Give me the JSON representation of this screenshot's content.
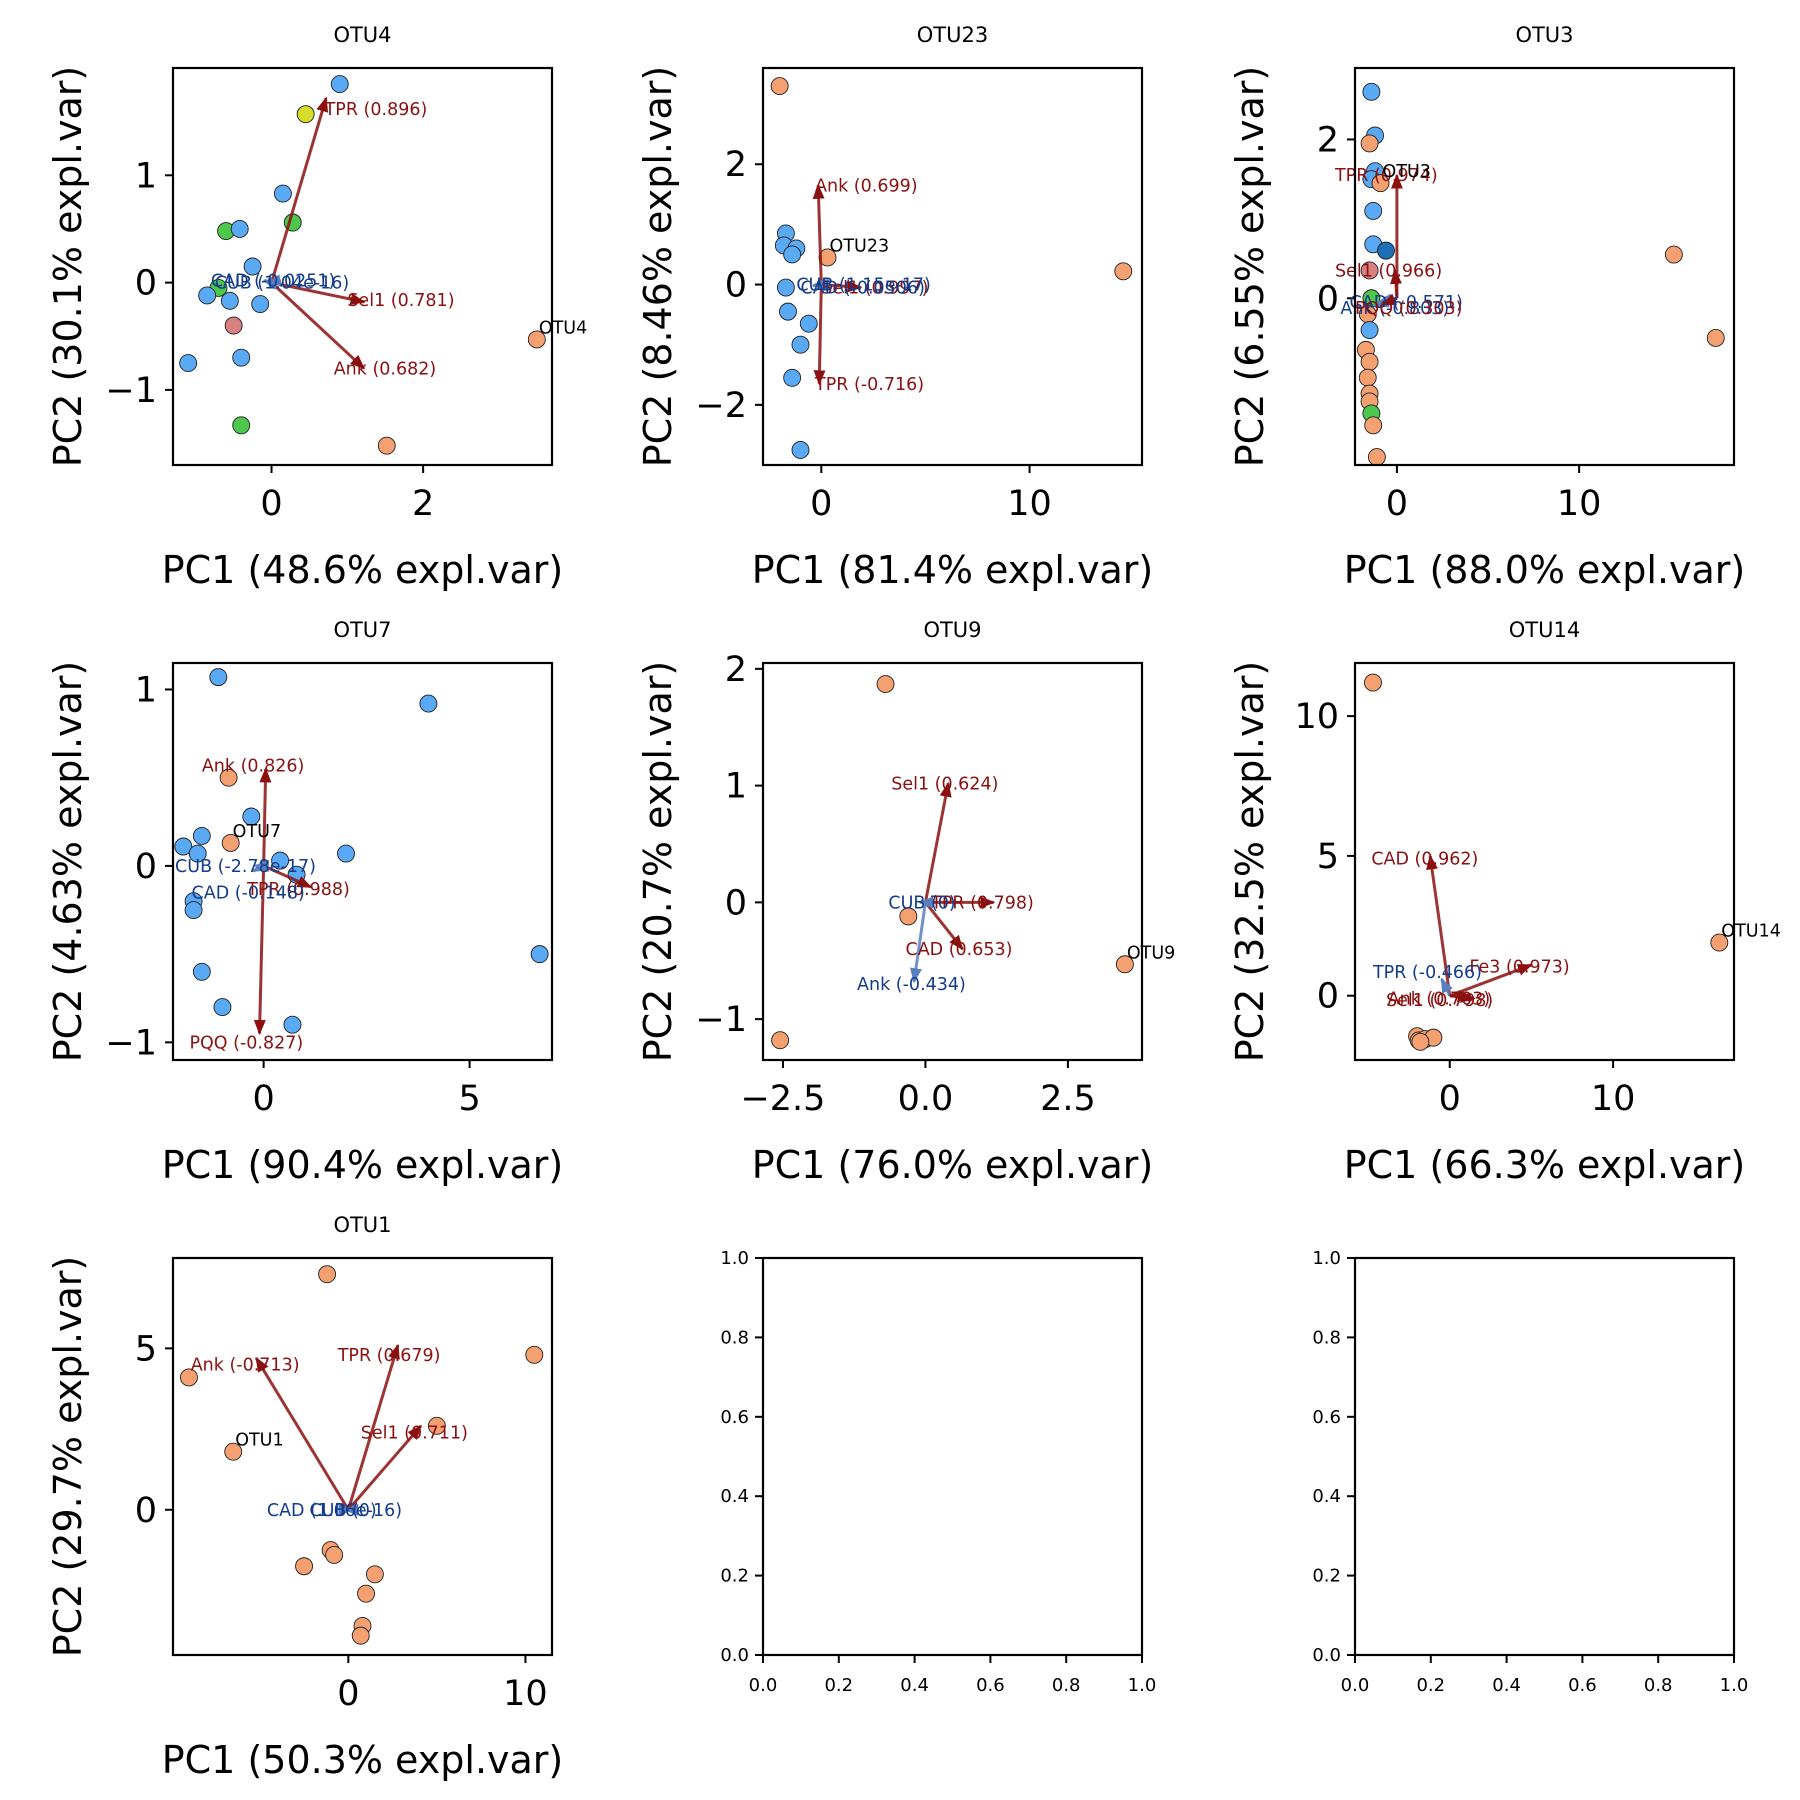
{
  "colors": {
    "blue": "#5aa9f5",
    "orange": "#f5a070",
    "green": "#4cc84c",
    "yellow": "#d6dc2a",
    "pink": "#d98080",
    "darkblue": "#1e6fb5",
    "pos_loading": "#8b1010",
    "neg_loading": "#143c8c",
    "neg_arrow": "#5a7fc0"
  },
  "chart_data": [
    {
      "type": "scatter",
      "title": "OTU4",
      "xlabel": "PC1 (48.6% expl.var)",
      "ylabel": "PC2 (30.1% expl.var)",
      "xlim": [
        -1.3,
        3.7
      ],
      "ylim": [
        -1.7,
        2.0
      ],
      "xticks": [
        0,
        2
      ],
      "xtick_labels": [
        "0",
        "2"
      ],
      "yticks": [
        -1,
        0,
        1
      ],
      "ytick_labels": [
        "−1",
        "0",
        "1"
      ],
      "points": [
        {
          "x": 0.9,
          "y": 1.85,
          "c": "blue"
        },
        {
          "x": 0.45,
          "y": 1.57,
          "c": "yellow"
        },
        {
          "x": 0.15,
          "y": 0.83,
          "c": "blue"
        },
        {
          "x": 0.28,
          "y": 0.56,
          "c": "green"
        },
        {
          "x": -0.6,
          "y": 0.48,
          "c": "green"
        },
        {
          "x": -0.42,
          "y": 0.5,
          "c": "blue"
        },
        {
          "x": -0.25,
          "y": 0.15,
          "c": "blue"
        },
        {
          "x": -0.7,
          "y": -0.05,
          "c": "green"
        },
        {
          "x": -0.85,
          "y": -0.12,
          "c": "blue"
        },
        {
          "x": -0.55,
          "y": -0.17,
          "c": "blue"
        },
        {
          "x": -0.15,
          "y": -0.2,
          "c": "blue"
        },
        {
          "x": -0.5,
          "y": -0.4,
          "c": "pink"
        },
        {
          "x": -1.1,
          "y": -0.75,
          "c": "blue"
        },
        {
          "x": -0.4,
          "y": -0.7,
          "c": "blue"
        },
        {
          "x": -0.4,
          "y": -1.33,
          "c": "green"
        },
        {
          "x": 3.5,
          "y": -0.53,
          "c": "orange",
          "label": "OTU4"
        },
        {
          "x": 1.52,
          "y": -1.52,
          "c": "orange"
        }
      ],
      "loadings": [
        {
          "label": "TPR (0.896)",
          "x": 0.72,
          "y": 1.72,
          "sign": "pos",
          "lx": 0.7,
          "ly": 1.62
        },
        {
          "label": "Sel1 (0.781)",
          "x": 1.22,
          "y": -0.18,
          "sign": "pos",
          "lx": 1.0,
          "ly": -0.16
        },
        {
          "label": "Ank (0.682)",
          "x": 1.22,
          "y": -0.8,
          "sign": "pos",
          "lx": 0.82,
          "ly": -0.8
        },
        {
          "label": "CUB (1.04e-16)",
          "x": -0.1,
          "y": 0.02,
          "sign": "neg",
          "lx": -0.75,
          "ly": 0.0
        },
        {
          "label": "CAD (-0.0251)",
          "x": -0.05,
          "y": -0.01,
          "sign": "neg",
          "lx": -0.8,
          "ly": 0.02
        }
      ]
    },
    {
      "type": "scatter",
      "title": "OTU23",
      "xlabel": "PC1 (81.4% expl.var)",
      "ylabel": "PC2 (8.46% expl.var)",
      "xlim": [
        -2.8,
        15.4
      ],
      "ylim": [
        -3.0,
        3.6
      ],
      "xticks": [
        0,
        10
      ],
      "xtick_labels": [
        "0",
        "10"
      ],
      "yticks": [
        -2,
        0,
        2
      ],
      "ytick_labels": [
        "−2",
        "0",
        "2"
      ],
      "points": [
        {
          "x": -2.0,
          "y": 3.3,
          "c": "orange"
        },
        {
          "x": -1.7,
          "y": 0.85,
          "c": "blue"
        },
        {
          "x": -1.8,
          "y": 0.65,
          "c": "blue"
        },
        {
          "x": -1.2,
          "y": 0.6,
          "c": "blue"
        },
        {
          "x": -1.4,
          "y": 0.5,
          "c": "blue"
        },
        {
          "x": 0.3,
          "y": 0.45,
          "c": "orange",
          "label": "OTU23"
        },
        {
          "x": -1.7,
          "y": -0.05,
          "c": "blue"
        },
        {
          "x": -1.6,
          "y": -0.45,
          "c": "blue"
        },
        {
          "x": -0.6,
          "y": -0.65,
          "c": "blue"
        },
        {
          "x": -1.0,
          "y": -1.0,
          "c": "blue"
        },
        {
          "x": -1.4,
          "y": -1.55,
          "c": "blue"
        },
        {
          "x": -1.0,
          "y": -2.75,
          "c": "blue"
        },
        {
          "x": 14.5,
          "y": 0.22,
          "c": "orange"
        }
      ],
      "loadings": [
        {
          "label": "Ank (0.699)",
          "x": -0.15,
          "y": 1.65,
          "sign": "pos",
          "lx": -0.3,
          "ly": 1.65
        },
        {
          "label": "TPR (-0.716)",
          "x": -0.1,
          "y": -1.65,
          "sign": "pos",
          "lx": -0.3,
          "ly": -1.65
        },
        {
          "label": "Sel1 (0.997)",
          "x": 1.9,
          "y": -0.05,
          "sign": "pos",
          "lx": 0.0,
          "ly": -0.05
        },
        {
          "label": "CUB (1.15e-17)",
          "x": -0.3,
          "y": 0.0,
          "sign": "neg",
          "lx": -1.2,
          "ly": 0.0
        },
        {
          "label": "CAD (-0.0506)",
          "x": -0.4,
          "y": -0.02,
          "sign": "neg",
          "lx": -1.0,
          "ly": -0.05
        }
      ]
    },
    {
      "type": "scatter",
      "title": "OTU3",
      "xlabel": "PC1 (88.0% expl.var)",
      "ylabel": "PC2 (6.55% expl.var)",
      "xlim": [
        -2.3,
        18.5
      ],
      "ylim": [
        -2.1,
        2.9
      ],
      "xticks": [
        0,
        10
      ],
      "xtick_labels": [
        "0",
        "10"
      ],
      "yticks": [
        0,
        2
      ],
      "ytick_labels": [
        "0",
        "2"
      ],
      "points": [
        {
          "x": -1.4,
          "y": 2.6,
          "c": "blue"
        },
        {
          "x": -1.2,
          "y": 2.05,
          "c": "blue"
        },
        {
          "x": -1.5,
          "y": 1.95,
          "c": "orange"
        },
        {
          "x": -1.2,
          "y": 1.6,
          "c": "blue"
        },
        {
          "x": -1.4,
          "y": 1.5,
          "c": "blue"
        },
        {
          "x": -0.9,
          "y": 1.45,
          "c": "orange",
          "label": "OTU3"
        },
        {
          "x": -1.3,
          "y": 1.1,
          "c": "blue"
        },
        {
          "x": -1.3,
          "y": 0.68,
          "c": "blue"
        },
        {
          "x": -0.6,
          "y": 0.6,
          "c": "darkblue"
        },
        {
          "x": -1.5,
          "y": 0.35,
          "c": "pink"
        },
        {
          "x": -1.4,
          "y": 0.0,
          "c": "green"
        },
        {
          "x": -1.6,
          "y": -0.2,
          "c": "orange"
        },
        {
          "x": -1.5,
          "y": -0.4,
          "c": "blue"
        },
        {
          "x": -1.7,
          "y": -0.65,
          "c": "orange"
        },
        {
          "x": -1.5,
          "y": -0.8,
          "c": "orange"
        },
        {
          "x": -1.6,
          "y": -1.0,
          "c": "orange"
        },
        {
          "x": -1.5,
          "y": -1.2,
          "c": "orange"
        },
        {
          "x": -1.5,
          "y": -1.3,
          "c": "orange"
        },
        {
          "x": -1.4,
          "y": -1.45,
          "c": "green"
        },
        {
          "x": -1.3,
          "y": -1.6,
          "c": "orange"
        },
        {
          "x": -1.1,
          "y": -2.0,
          "c": "orange"
        },
        {
          "x": 15.2,
          "y": 0.55,
          "c": "orange"
        },
        {
          "x": 17.5,
          "y": -0.5,
          "c": "orange"
        }
      ],
      "loadings": [
        {
          "label": "TPR (0.974)",
          "x": 0.0,
          "y": 1.55,
          "sign": "pos",
          "lx": -3.4,
          "ly": 1.55
        },
        {
          "label": "Sel1 (0.966)",
          "x": -0.1,
          "y": 0.35,
          "sign": "pos",
          "lx": -3.4,
          "ly": 0.35
        },
        {
          "label": "CAD (-0.571)",
          "x": -1.0,
          "y": -0.05,
          "sign": "neg",
          "lx": -2.6,
          "ly": -0.05
        },
        {
          "label": "Ank (-0.803)",
          "x": -1.2,
          "y": -0.1,
          "sign": "neg",
          "lx": -3.1,
          "ly": -0.12
        },
        {
          "label": "PQQ (0.303)",
          "x": -0.8,
          "y": -0.08,
          "sign": "pos",
          "lx": -2.3,
          "ly": -0.12
        }
      ]
    },
    {
      "type": "scatter",
      "title": "OTU7",
      "xlabel": "PC1 (90.4% expl.var)",
      "ylabel": "PC2 (4.63% expl.var)",
      "xlim": [
        -2.2,
        7.0
      ],
      "ylim": [
        -1.1,
        1.15
      ],
      "xticks": [
        0,
        5
      ],
      "xtick_labels": [
        "0",
        "5"
      ],
      "yticks": [
        -1,
        0,
        1
      ],
      "ytick_labels": [
        "−1",
        "0",
        "1"
      ],
      "points": [
        {
          "x": -1.1,
          "y": 1.07,
          "c": "blue"
        },
        {
          "x": 4.0,
          "y": 0.92,
          "c": "blue"
        },
        {
          "x": -0.85,
          "y": 0.5,
          "c": "orange"
        },
        {
          "x": -0.3,
          "y": 0.28,
          "c": "blue"
        },
        {
          "x": -1.5,
          "y": 0.17,
          "c": "blue"
        },
        {
          "x": -0.8,
          "y": 0.13,
          "c": "orange",
          "label": "OTU7"
        },
        {
          "x": -1.95,
          "y": 0.11,
          "c": "blue"
        },
        {
          "x": -1.6,
          "y": 0.07,
          "c": "blue"
        },
        {
          "x": 2.0,
          "y": 0.07,
          "c": "blue"
        },
        {
          "x": 0.4,
          "y": 0.03,
          "c": "blue"
        },
        {
          "x": 0.8,
          "y": -0.05,
          "c": "blue"
        },
        {
          "x": -1.7,
          "y": -0.2,
          "c": "blue"
        },
        {
          "x": -1.7,
          "y": -0.25,
          "c": "blue"
        },
        {
          "x": 6.7,
          "y": -0.5,
          "c": "blue"
        },
        {
          "x": -1.5,
          "y": -0.6,
          "c": "blue"
        },
        {
          "x": -1.0,
          "y": -0.8,
          "c": "blue"
        },
        {
          "x": 0.7,
          "y": -0.9,
          "c": "blue"
        }
      ],
      "loadings": [
        {
          "label": "Ank (0.826)",
          "x": 0.05,
          "y": 0.55,
          "sign": "pos",
          "lx": -1.5,
          "ly": 0.57
        },
        {
          "label": "TPR (0.988)",
          "x": 1.15,
          "y": -0.12,
          "sign": "pos",
          "lx": -0.4,
          "ly": -0.13
        },
        {
          "label": "PQQ (-0.827)",
          "x": -0.1,
          "y": -0.95,
          "sign": "pos",
          "lx": -1.8,
          "ly": -1.0
        },
        {
          "label": "CUB (-2.78e-17)",
          "x": -0.2,
          "y": 0.0,
          "sign": "neg",
          "lx": -2.15,
          "ly": 0.0
        },
        {
          "label": "CAD (-0.148)",
          "x": -0.25,
          "y": -0.03,
          "sign": "neg",
          "lx": -1.75,
          "ly": -0.15
        }
      ]
    },
    {
      "type": "scatter",
      "title": "OTU9",
      "xlabel": "PC1 (76.0% expl.var)",
      "ylabel": "PC2 (20.7% expl.var)",
      "xlim": [
        -2.85,
        3.8
      ],
      "ylim": [
        -1.35,
        2.05
      ],
      "xticks": [
        -2.5,
        0.0,
        2.5
      ],
      "xtick_labels": [
        "−2.5",
        "0.0",
        "2.5"
      ],
      "yticks": [
        -1,
        0,
        1,
        2
      ],
      "ytick_labels": [
        "−1",
        "0",
        "1",
        "2"
      ],
      "points": [
        {
          "x": -0.7,
          "y": 1.87,
          "c": "orange"
        },
        {
          "x": -0.3,
          "y": -0.12,
          "c": "orange"
        },
        {
          "x": 3.5,
          "y": -0.53,
          "c": "orange",
          "label": "OTU9"
        },
        {
          "x": -2.55,
          "y": -1.18,
          "c": "orange"
        }
      ],
      "loadings": [
        {
          "label": "Sel1 (0.624)",
          "x": 0.4,
          "y": 1.02,
          "sign": "pos",
          "lx": -0.6,
          "ly": 1.02
        },
        {
          "label": "TPR (0.798)",
          "x": 1.2,
          "y": 0.0,
          "sign": "pos",
          "lx": 0.1,
          "ly": 0.0
        },
        {
          "label": "CAD (0.653)",
          "x": 0.65,
          "y": -0.4,
          "sign": "pos",
          "lx": -0.35,
          "ly": -0.4
        },
        {
          "label": "Ank (-0.434)",
          "x": -0.2,
          "y": -0.68,
          "sign": "neg",
          "lx": -1.2,
          "ly": -0.7
        },
        {
          "label": "CUB (0)",
          "x": -0.1,
          "y": 0.0,
          "sign": "neg",
          "lx": -0.65,
          "ly": 0.0
        }
      ]
    },
    {
      "type": "scatter",
      "title": "OTU14",
      "xlabel": "PC1 (66.3% expl.var)",
      "ylabel": "PC2 (32.5% expl.var)",
      "xlim": [
        -5.8,
        17.4
      ],
      "ylim": [
        -2.3,
        11.9
      ],
      "xticks": [
        0,
        10
      ],
      "xtick_labels": [
        "0",
        "10"
      ],
      "yticks": [
        0,
        5,
        10
      ],
      "ytick_labels": [
        "0",
        "5",
        "10"
      ],
      "points": [
        {
          "x": -4.7,
          "y": 11.2,
          "c": "orange"
        },
        {
          "x": 16.5,
          "y": 1.9,
          "c": "orange",
          "label": "OTU14"
        },
        {
          "x": -2.0,
          "y": -1.45,
          "c": "orange"
        },
        {
          "x": -1.9,
          "y": -1.6,
          "c": "orange"
        },
        {
          "x": -1.5,
          "y": -1.55,
          "c": "orange"
        },
        {
          "x": -1.0,
          "y": -1.5,
          "c": "orange"
        },
        {
          "x": -1.8,
          "y": -1.65,
          "c": "orange"
        }
      ],
      "loadings": [
        {
          "label": "CAD (0.962)",
          "x": -1.2,
          "y": 5.0,
          "sign": "pos",
          "lx": -4.8,
          "ly": 4.9
        },
        {
          "label": "Fe3 (0.973)",
          "x": 5.0,
          "y": 1.1,
          "sign": "pos",
          "lx": 1.2,
          "ly": 1.05
        },
        {
          "label": "TPR (-0.466)",
          "x": -0.5,
          "y": 0.6,
          "sign": "neg",
          "lx": -4.7,
          "ly": 0.85
        },
        {
          "label": "Sel1 (0.798)",
          "x": 1.5,
          "y": -0.1,
          "sign": "pos",
          "lx": -3.9,
          "ly": -0.15
        },
        {
          "label": "Ank (0.703)",
          "x": 1.3,
          "y": -0.05,
          "sign": "pos",
          "lx": -3.8,
          "ly": -0.1
        }
      ]
    },
    {
      "type": "scatter",
      "title": "OTU1",
      "xlabel": "PC1 (50.3% expl.var)",
      "ylabel": "PC2 (29.7% expl.var)",
      "xlim": [
        -9.9,
        11.5
      ],
      "ylim": [
        -4.5,
        7.8
      ],
      "xticks": [
        0,
        10
      ],
      "xtick_labels": [
        "0",
        "10"
      ],
      "yticks": [
        0,
        5
      ],
      "ytick_labels": [
        "0",
        "5"
      ],
      "points": [
        {
          "x": -1.2,
          "y": 7.3,
          "c": "orange"
        },
        {
          "x": 10.5,
          "y": 4.8,
          "c": "orange"
        },
        {
          "x": -9.0,
          "y": 4.1,
          "c": "orange"
        },
        {
          "x": 5.0,
          "y": 2.6,
          "c": "orange"
        },
        {
          "x": -6.5,
          "y": 1.8,
          "c": "orange",
          "label": "OTU1"
        },
        {
          "x": -1.0,
          "y": -1.25,
          "c": "orange"
        },
        {
          "x": -0.8,
          "y": -1.4,
          "c": "orange"
        },
        {
          "x": -2.5,
          "y": -1.75,
          "c": "orange"
        },
        {
          "x": 1.5,
          "y": -2.0,
          "c": "orange"
        },
        {
          "x": 1.0,
          "y": -2.6,
          "c": "orange"
        },
        {
          "x": 0.8,
          "y": -3.6,
          "c": "orange"
        },
        {
          "x": 0.7,
          "y": -3.9,
          "c": "orange"
        }
      ],
      "loadings": [
        {
          "label": "Ank (-0.713)",
          "x": -5.2,
          "y": 4.7,
          "sign": "pos",
          "lx": -8.9,
          "ly": 4.5
        },
        {
          "label": "TPR (0.679)",
          "x": 2.8,
          "y": 5.1,
          "sign": "pos",
          "lx": -0.6,
          "ly": 4.8
        },
        {
          "label": "Sel1 (0.711)",
          "x": 4.1,
          "y": 2.6,
          "sign": "pos",
          "lx": 0.7,
          "ly": 2.4
        },
        {
          "label": "CAD (1.06e-16)",
          "x": -0.2,
          "y": 0.0,
          "sign": "neg",
          "lx": -4.6,
          "ly": 0.0
        },
        {
          "label": "CUB (0)",
          "x": 0.2,
          "y": 0.0,
          "sign": "neg",
          "lx": -2.2,
          "ly": 0.0
        }
      ]
    },
    {
      "type": "empty",
      "xlim": [
        0,
        1
      ],
      "ylim": [
        0,
        1
      ],
      "xticks": [
        0,
        0.2,
        0.4,
        0.6,
        0.8,
        1.0
      ],
      "xtick_labels": [
        "0.0",
        "0.2",
        "0.4",
        "0.6",
        "0.8",
        "1.0"
      ],
      "yticks": [
        0,
        0.2,
        0.4,
        0.6,
        0.8,
        1.0
      ],
      "ytick_labels": [
        "0.0",
        "0.2",
        "0.4",
        "0.6",
        "0.8",
        "1.0"
      ]
    },
    {
      "type": "empty",
      "xlim": [
        0,
        1
      ],
      "ylim": [
        0,
        1
      ],
      "xticks": [
        0,
        0.2,
        0.4,
        0.6,
        0.8,
        1.0
      ],
      "xtick_labels": [
        "0.0",
        "0.2",
        "0.4",
        "0.6",
        "0.8",
        "1.0"
      ],
      "yticks": [
        0,
        0.2,
        0.4,
        0.6,
        0.8,
        1.0
      ],
      "ytick_labels": [
        "0.0",
        "0.2",
        "0.4",
        "0.6",
        "0.8",
        "1.0"
      ]
    }
  ]
}
